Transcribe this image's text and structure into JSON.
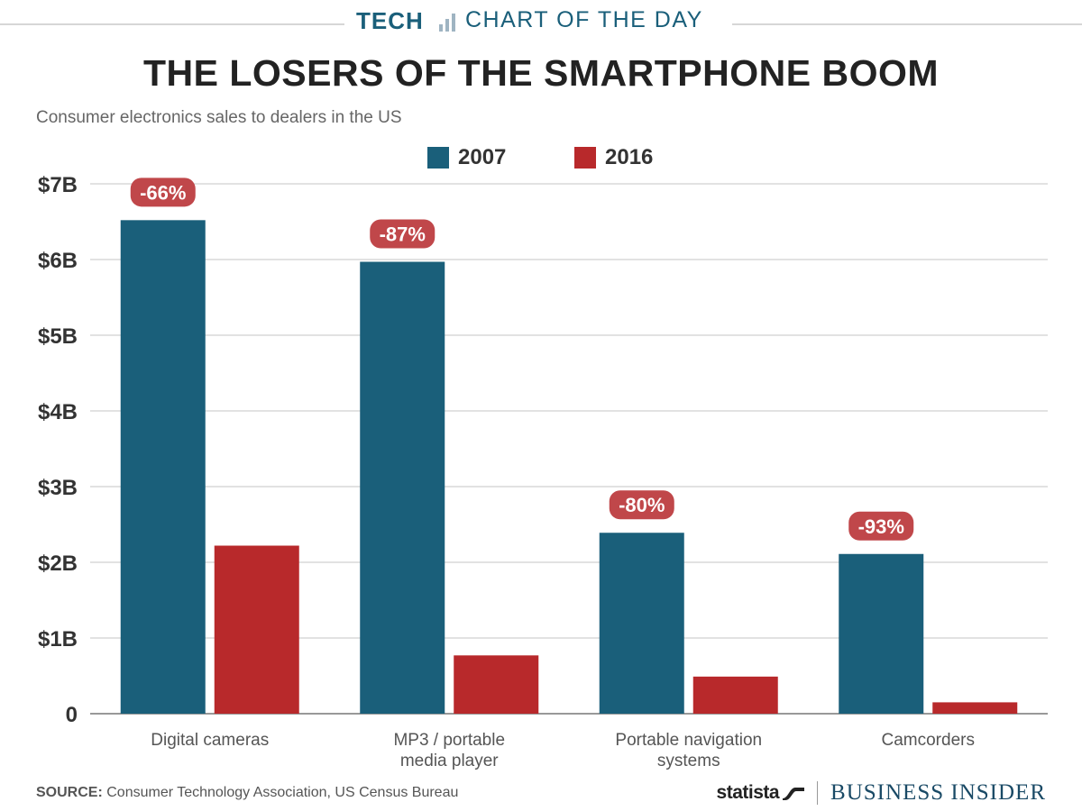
{
  "banner": {
    "tech": "TECH",
    "chart_of_the_day": "CHART OF THE DAY"
  },
  "colors": {
    "series_2007": "#1a5f7a",
    "series_2016": "#b8292b",
    "badge": "#c0474a",
    "grid": "#d9d9d9",
    "axis": "#999999"
  },
  "chart_data": {
    "type": "bar",
    "title": "THE LOSERS OF THE SMARTPHONE BOOM",
    "subtitle": "Consumer electronics sales to dealers in the US",
    "categories": [
      "Digital cameras",
      "MP3 / portable\nmedia player",
      "Portable navigation\nsystems",
      "Camcorders"
    ],
    "series": [
      {
        "name": "2007",
        "values": [
          6.52,
          5.97,
          2.39,
          2.11
        ]
      },
      {
        "name": "2016",
        "values": [
          2.22,
          0.77,
          0.49,
          0.15
        ]
      }
    ],
    "annotations": [
      "-66%",
      "-87%",
      "-80%",
      "-93%"
    ],
    "yticks": [
      "0",
      "$1B",
      "$2B",
      "$3B",
      "$4B",
      "$5B",
      "$6B",
      "$7B"
    ],
    "ylim": [
      0,
      7
    ],
    "xlabel": "",
    "ylabel": "",
    "grid": true,
    "legend": "top-center"
  },
  "footer": {
    "source_label": "SOURCE:",
    "source_text": "Consumer Technology Association, US Census Bureau",
    "statista": "statista",
    "business_insider": "BUSINESS INSIDER"
  }
}
